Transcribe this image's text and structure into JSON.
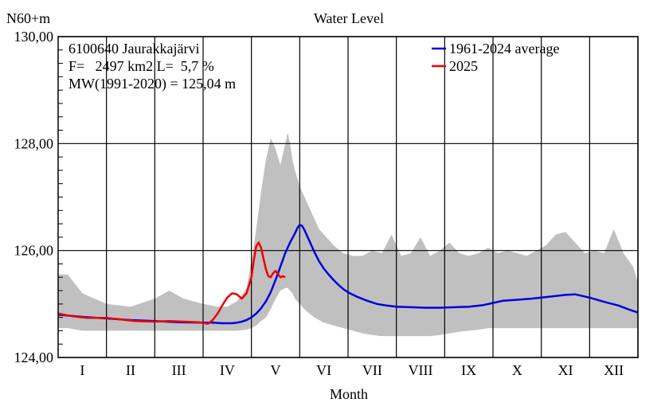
{
  "chart_data": {
    "type": "line",
    "title": "Water Level",
    "ylabel": "N60+m",
    "xlabel": "Month",
    "ylim": [
      124.0,
      130.0
    ],
    "xlim": [
      0,
      12
    ],
    "y_ticks": [
      "124,00",
      "126,00",
      "128,00",
      "130,00"
    ],
    "y_tick_values": [
      124,
      126,
      128,
      130
    ],
    "y_gridlines": [
      124,
      126,
      128,
      130
    ],
    "categories": [
      "I",
      "II",
      "III",
      "IV",
      "V",
      "VI",
      "VII",
      "VIII",
      "IX",
      "X",
      "XI",
      "XII"
    ],
    "x_gridlines": [
      1,
      2,
      3,
      4,
      5,
      6,
      7,
      8,
      9,
      10,
      11,
      12
    ],
    "grid": true,
    "legend_position": "top-right",
    "info_lines": [
      "6100640 Jaurakkajärvi",
      "F=   2497 km2 L=  5,7 %",
      "MW(1991-2020) = 125,04 m"
    ],
    "series": [
      {
        "name": "1961-2024 average",
        "color": "#0000dd",
        "x": [
          0,
          0.5,
          1,
          1.5,
          2,
          2.5,
          3,
          3.2,
          3.4,
          3.5,
          3.6,
          3.7,
          3.8,
          3.9,
          4.0,
          4.1,
          4.2,
          4.3,
          4.4,
          4.5,
          4.6,
          4.7,
          4.8,
          4.9,
          4.95,
          5.0,
          5.05,
          5.1,
          5.2,
          5.3,
          5.4,
          5.5,
          5.6,
          5.7,
          5.8,
          5.9,
          6.0,
          6.2,
          6.4,
          6.6,
          6.8,
          7.0,
          7.3,
          7.6,
          7.9,
          8.2,
          8.5,
          8.8,
          9.0,
          9.2,
          9.5,
          9.8,
          10.1,
          10.3,
          10.5,
          10.7,
          11.0,
          11.3,
          11.6,
          11.8,
          12.0
        ],
        "values": [
          124.8,
          124.76,
          124.73,
          124.7,
          124.68,
          124.66,
          124.65,
          124.65,
          124.64,
          124.64,
          124.64,
          124.65,
          124.67,
          124.7,
          124.75,
          124.82,
          124.92,
          125.05,
          125.22,
          125.45,
          125.7,
          125.95,
          126.15,
          126.32,
          126.42,
          126.48,
          126.46,
          126.38,
          126.18,
          125.98,
          125.8,
          125.66,
          125.55,
          125.45,
          125.36,
          125.28,
          125.22,
          125.13,
          125.06,
          125.0,
          124.97,
          124.95,
          124.94,
          124.93,
          124.93,
          124.94,
          124.95,
          124.98,
          125.02,
          125.06,
          125.08,
          125.1,
          125.13,
          125.15,
          125.17,
          125.18,
          125.12,
          125.04,
          124.97,
          124.9,
          124.84
        ]
      },
      {
        "name": "2025",
        "color": "#ee0000",
        "x": [
          0,
          0.3,
          0.6,
          1.0,
          1.3,
          1.6,
          2.0,
          2.3,
          2.6,
          2.9,
          3.1,
          3.2,
          3.3,
          3.4,
          3.5,
          3.6,
          3.7,
          3.8,
          3.9,
          4.0,
          4.05,
          4.1,
          4.15,
          4.2,
          4.25,
          4.3,
          4.35,
          4.4,
          4.45,
          4.5,
          4.55,
          4.6,
          4.65,
          4.7
        ],
        "values": [
          124.82,
          124.77,
          124.74,
          124.74,
          124.71,
          124.68,
          124.67,
          124.68,
          124.67,
          124.66,
          124.63,
          124.7,
          124.82,
          124.98,
          125.12,
          125.2,
          125.18,
          125.1,
          125.2,
          125.5,
          125.82,
          126.08,
          126.15,
          126.05,
          125.85,
          125.65,
          125.52,
          125.5,
          125.58,
          125.62,
          125.56,
          125.5,
          125.52,
          125.5
        ]
      }
    ],
    "range_band": {
      "color": "#c0c0c0",
      "x": [
        0,
        0.2,
        0.5,
        1.0,
        1.5,
        2.0,
        2.3,
        2.6,
        3.0,
        3.3,
        3.5,
        3.7,
        3.9,
        4.0,
        4.1,
        4.2,
        4.3,
        4.4,
        4.5,
        4.6,
        4.7,
        4.75,
        4.8,
        4.85,
        4.9,
        5.0,
        5.1,
        5.2,
        5.3,
        5.4,
        5.5,
        5.7,
        5.9,
        6.1,
        6.3,
        6.5,
        6.7,
        6.9,
        7.1,
        7.3,
        7.5,
        7.7,
        7.9,
        8.1,
        8.3,
        8.5,
        8.7,
        8.9,
        9.1,
        9.3,
        9.5,
        9.7,
        9.9,
        10.1,
        10.3,
        10.5,
        10.7,
        10.9,
        11.1,
        11.3,
        11.5,
        11.7,
        11.9,
        12.0
      ],
      "upper": [
        125.55,
        125.55,
        125.2,
        125.0,
        124.95,
        125.1,
        125.25,
        125.1,
        125.0,
        124.95,
        124.95,
        125.05,
        125.3,
        125.8,
        126.4,
        127.1,
        127.7,
        128.1,
        127.9,
        127.6,
        128.0,
        128.2,
        128.0,
        127.7,
        127.5,
        127.2,
        127.0,
        126.8,
        126.6,
        126.4,
        126.3,
        126.1,
        125.95,
        125.9,
        125.9,
        126.0,
        125.95,
        126.3,
        125.9,
        125.95,
        126.25,
        125.9,
        126.0,
        126.15,
        125.95,
        125.9,
        125.95,
        126.05,
        125.95,
        126.0,
        125.95,
        125.9,
        126.0,
        126.1,
        126.3,
        126.35,
        126.15,
        125.95,
        126.0,
        125.95,
        126.4,
        125.95,
        125.7,
        125.4
      ],
      "lower": [
        124.55,
        124.55,
        124.5,
        124.5,
        124.5,
        124.5,
        124.5,
        124.5,
        124.5,
        124.5,
        124.5,
        124.5,
        124.52,
        124.55,
        124.6,
        124.68,
        124.75,
        124.9,
        125.1,
        125.25,
        125.3,
        125.3,
        125.25,
        125.2,
        125.1,
        125.0,
        124.9,
        124.82,
        124.75,
        124.7,
        124.65,
        124.6,
        124.55,
        124.5,
        124.45,
        124.42,
        124.4,
        124.4,
        124.4,
        124.4,
        124.4,
        124.4,
        124.42,
        124.45,
        124.48,
        124.5,
        124.52,
        124.55,
        124.55,
        124.55,
        124.55,
        124.55,
        124.55,
        124.55,
        124.55,
        124.55,
        124.55,
        124.55,
        124.55,
        124.55,
        124.55,
        124.55,
        124.55,
        124.55
      ]
    }
  }
}
